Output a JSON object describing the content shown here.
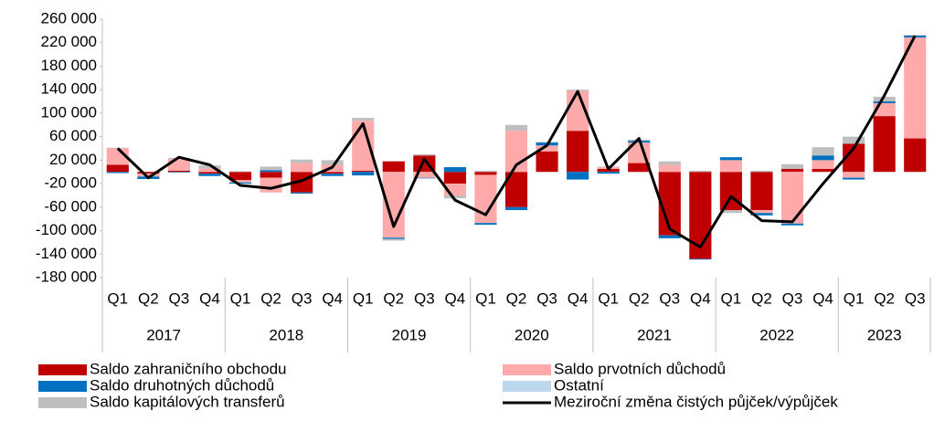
{
  "chart_data": {
    "type": "bar",
    "categories": [
      "Q1",
      "Q2",
      "Q3",
      "Q4",
      "Q1",
      "Q2",
      "Q3",
      "Q4",
      "Q1",
      "Q2",
      "Q3",
      "Q4",
      "Q1",
      "Q2",
      "Q3",
      "Q4",
      "Q1",
      "Q2",
      "Q3",
      "Q4",
      "Q1",
      "Q2",
      "Q3",
      "Q4",
      "Q1",
      "Q2",
      "Q3"
    ],
    "years": [
      "2017",
      "2018",
      "2019",
      "2020",
      "2021",
      "2022",
      "2023"
    ],
    "series": [
      {
        "name": "Saldo zahraničního obchodu",
        "color": "#c00000",
        "values": [
          12000,
          -3000,
          2000,
          -3000,
          -14000,
          -10000,
          -35000,
          -3000,
          2000,
          18000,
          28000,
          -20000,
          -5000,
          -60000,
          35000,
          70000,
          5000,
          15000,
          -108000,
          -148000,
          -65000,
          -65000,
          5000,
          5000,
          48000,
          95000,
          57000
        ]
      },
      {
        "name": "Saldo prvotních důchodů",
        "color": "#ffaaaa",
        "values": [
          28000,
          -5000,
          20000,
          6000,
          -4000,
          -25000,
          15000,
          12000,
          85000,
          -112000,
          -10000,
          -20000,
          -82000,
          70000,
          10000,
          68000,
          3000,
          35000,
          12000,
          0,
          20000,
          -5000,
          -88000,
          15000,
          -10000,
          22000,
          172000
        ]
      },
      {
        "name": "Saldo druhotných důchodů",
        "color": "#0070c0",
        "values": [
          -2000,
          -4000,
          -1000,
          -4000,
          -2000,
          3000,
          -2000,
          -4000,
          -6000,
          -2000,
          -1000,
          8000,
          -3000,
          -5000,
          5000,
          -13000,
          -3000,
          3000,
          -5000,
          -1000,
          5000,
          -4000,
          -3000,
          8000,
          -3000,
          3000,
          3000
        ]
      },
      {
        "name": "Ostatní",
        "color": "#bdd7ee",
        "values": [
          0,
          0,
          0,
          0,
          0,
          0,
          0,
          0,
          0,
          0,
          0,
          0,
          0,
          0,
          0,
          0,
          0,
          0,
          0,
          -1000,
          0,
          0,
          0,
          0,
          0,
          0,
          0
        ]
      },
      {
        "name": "Saldo kapitálových transferů",
        "color": "#bfbfbf",
        "values": [
          1000,
          0,
          2000,
          5000,
          1000,
          6000,
          6000,
          8000,
          5000,
          -3000,
          2000,
          -5000,
          2000,
          10000,
          1000,
          2000,
          1000,
          2000,
          6000,
          2000,
          -5000,
          2000,
          8000,
          14000,
          12000,
          8000,
          1000
        ]
      }
    ],
    "line": {
      "name": "Meziroční změna čistých půjček/výpůjček",
      "color": "#000000",
      "values": [
        40000,
        -10000,
        25000,
        12000,
        -23000,
        -28000,
        -15000,
        8000,
        82000,
        -93000,
        22000,
        -48000,
        -73000,
        12000,
        45000,
        137000,
        5000,
        57000,
        -97000,
        -128000,
        -42000,
        -83000,
        -85000,
        -20000,
        40000,
        130000,
        232000
      ]
    },
    "ylim": [
      -180000,
      260000
    ],
    "yticks": [
      {
        "value": -180000,
        "label": "-180 000"
      },
      {
        "value": -140000,
        "label": "-140 000"
      },
      {
        "value": -100000,
        "label": "-100 000"
      },
      {
        "value": -60000,
        "label": "-60 000"
      },
      {
        "value": -20000,
        "label": "-20 000"
      },
      {
        "value": 20000,
        "label": "20 000"
      },
      {
        "value": 60000,
        "label": "60 000"
      },
      {
        "value": 100000,
        "label": "100 000"
      },
      {
        "value": 140000,
        "label": "140 000"
      },
      {
        "value": 180000,
        "label": "180 000"
      },
      {
        "value": 220000,
        "label": "220 000"
      },
      {
        "value": 260000,
        "label": "260 000"
      }
    ],
    "grid": false
  }
}
